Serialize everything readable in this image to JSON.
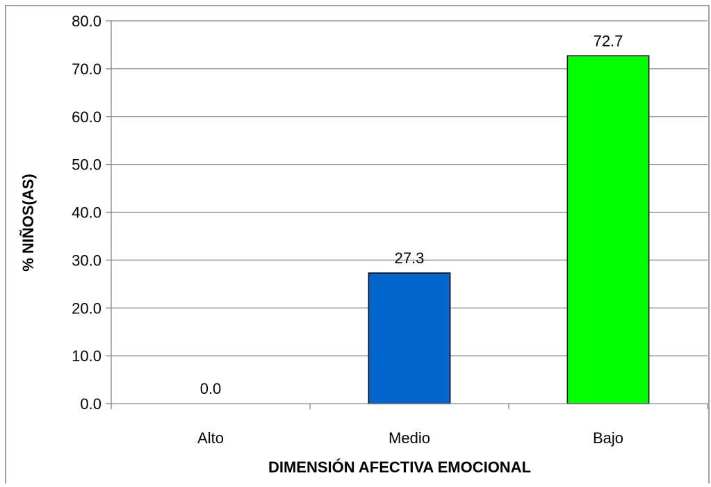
{
  "chart_data": {
    "type": "bar",
    "categories": [
      "Alto",
      "Medio",
      "Bajo"
    ],
    "values": [
      0.0,
      27.3,
      72.7
    ],
    "data_labels": [
      "0.0",
      "27.3",
      "72.7"
    ],
    "bar_colors": [
      "#0066CC",
      "#0066CC",
      "#00FF00"
    ],
    "xlabel": "DIMENSIÓN AFECTIVA EMOCIONAL",
    "ylabel": "% NIÑOS(AS)",
    "ylim": [
      0,
      80
    ],
    "yticks": [
      "0.0",
      "10.0",
      "20.0",
      "30.0",
      "40.0",
      "50.0",
      "60.0",
      "70.0",
      "80.0"
    ],
    "grid": true,
    "legend": "none"
  }
}
